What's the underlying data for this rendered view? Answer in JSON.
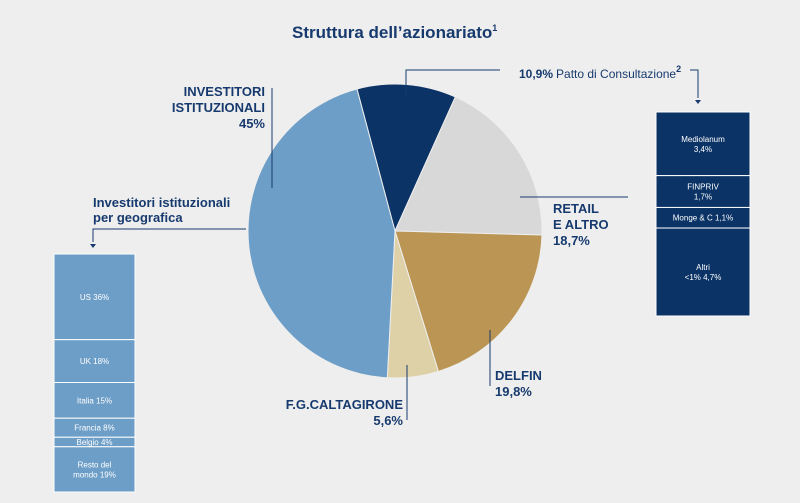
{
  "title": "Struttura dell’azionariato",
  "title_note": "1",
  "colors": {
    "background": "#eeeeee",
    "text": "#173a6e",
    "patto": "#0b3366",
    "retail": "#d8d8d8",
    "delfin": "#bb9553",
    "caltagirone": "#ded1a8",
    "istituzionali": "#6d9ec7",
    "divider": "#ffffff"
  },
  "chart_data": {
    "type": "pie",
    "title": "Struttura dell’azionariato",
    "slices": [
      {
        "id": "patto",
        "value": 10.9,
        "color": "#0b3366"
      },
      {
        "id": "retail",
        "value": 18.7,
        "color": "#d8d8d8",
        "label_lines": [
          "RETAIL",
          "E ALTRO"
        ],
        "value_label": "18,7%"
      },
      {
        "id": "delfin",
        "value": 19.8,
        "color": "#bb9553",
        "label_lines": [
          "DELFIN"
        ],
        "value_label": "19,8%"
      },
      {
        "id": "caltagirone",
        "value": 5.6,
        "color": "#ded1a8",
        "label_lines": [
          "F.G.CALTAGIRONE"
        ],
        "value_label": "5,6%"
      },
      {
        "id": "istituzionali",
        "value": 45,
        "color": "#6d9ec7",
        "label_lines": [
          "INVESTITORI",
          "ISTITUZIONALI"
        ],
        "value_label": "45%"
      }
    ],
    "patto": {
      "pct": "10,9%",
      "label": "Patto di Consultazione",
      "note": "2",
      "breakdown": [
        {
          "lines": [
            "Mediolanum",
            "3,4%"
          ],
          "value": 3.4
        },
        {
          "lines": [
            "FINPRIV",
            "1,7%"
          ],
          "value": 1.7
        },
        {
          "lines": [
            "Monge & C 1,1%"
          ],
          "value": 1.1
        },
        {
          "lines": [
            "Altri",
            "<1% 4,7%"
          ],
          "value": 4.7
        }
      ]
    },
    "geografica": {
      "label_lines": [
        "Investitori istituzionali",
        "per geografica"
      ],
      "breakdown": [
        {
          "lines": [
            "US 36%"
          ],
          "value": 36
        },
        {
          "lines": [
            "UK 18%"
          ],
          "value": 18
        },
        {
          "lines": [
            "Italia 15%"
          ],
          "value": 15
        },
        {
          "lines": [
            "Francia 8%"
          ],
          "value": 8
        },
        {
          "lines": [
            "Belgio 4%"
          ],
          "value": 4
        },
        {
          "lines": [
            "Resto del",
            "mondo 19%"
          ],
          "value": 19
        }
      ]
    }
  }
}
